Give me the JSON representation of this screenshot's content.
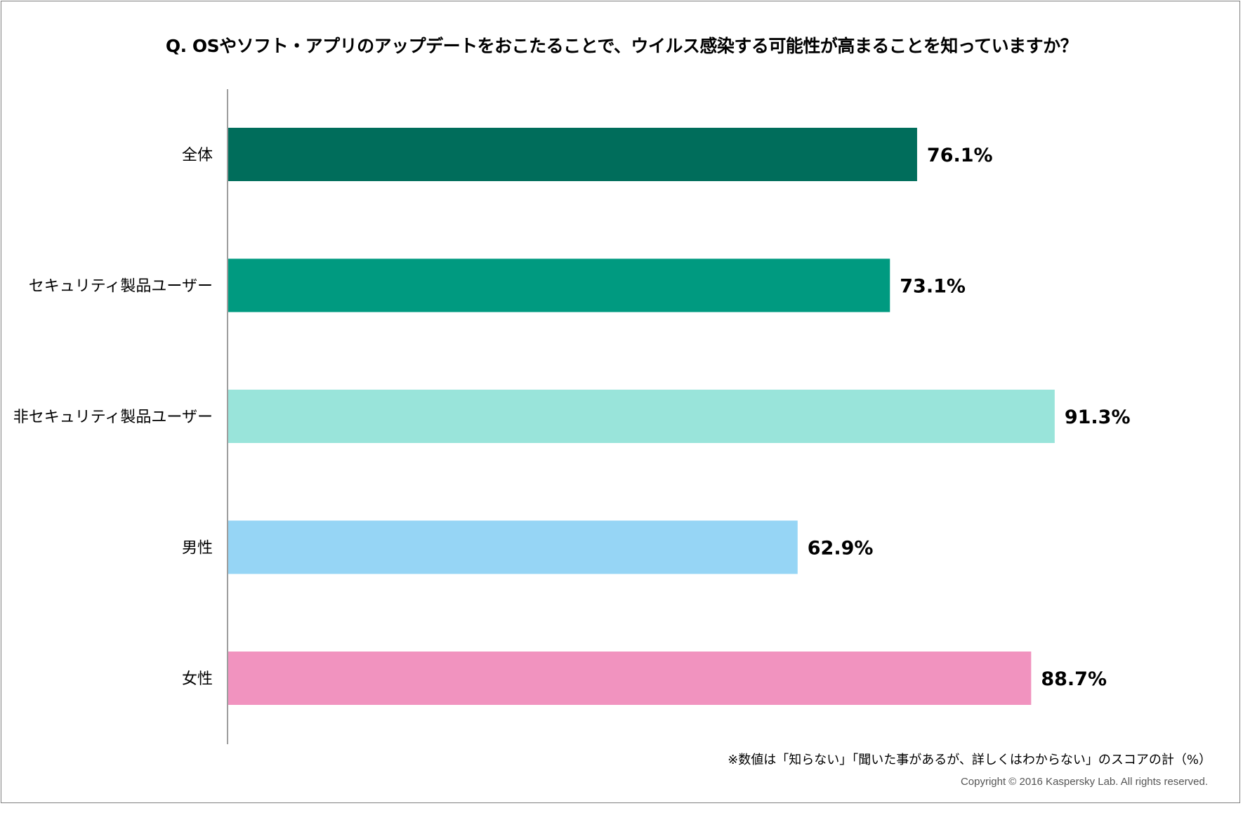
{
  "title": "Q. OSやソフト・アプリのアップデートをおこたることで、ウイルス感染する可能性が高まることを知っていますか？",
  "note": "※数値は「知らない」「聞いた事があるが、詳しくはわからない」のスコアの計（%）",
  "copyright": "Copyright © 2016 Kaspersky Lab. All rights reserved.",
  "chart_data": {
    "type": "bar",
    "orientation": "horizontal",
    "title": "Q. OSやソフト・アプリのアップデートをおこたることで、ウイルス感染する可能性が高まることを知っていますか？",
    "categories": [
      "全体",
      "セキュリティ製品ユーザー",
      "非セキュリティ製品ユーザー",
      "男性",
      "女性"
    ],
    "values": [
      76.1,
      73.1,
      91.3,
      62.9,
      88.7
    ],
    "value_labels": [
      "76.1%",
      "73.1%",
      "91.3%",
      "62.9%",
      "88.7%"
    ],
    "colors": [
      "#006d5b",
      "#009a80",
      "#99e4da",
      "#96d5f5",
      "#f193bf"
    ],
    "xlim": [
      0,
      100
    ],
    "xlabel": "",
    "ylabel": "",
    "grid": false,
    "legend": "none"
  }
}
